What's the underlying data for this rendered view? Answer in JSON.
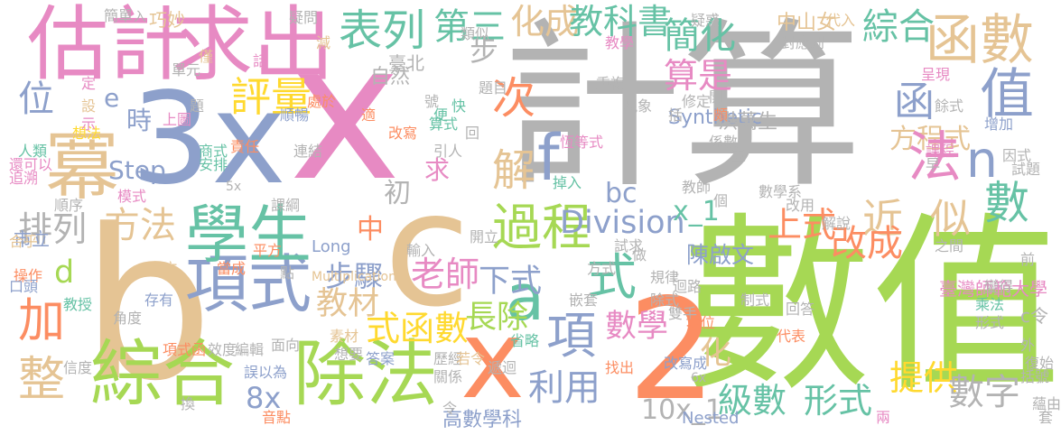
{
  "words": [
    {
      "text": "計算",
      "color": "#b3b3b3",
      "vertical": false
    },
    {
      "text": "數值",
      "color": "#a6d854",
      "vertical": false
    },
    {
      "text": "x",
      "color": "#e78ac3",
      "vertical": false
    },
    {
      "text": "3x",
      "color": "#8da0cb",
      "vertical": false
    },
    {
      "text": "b",
      "color": "#e5c494",
      "vertical": false
    },
    {
      "text": "c",
      "color": "#e5c494",
      "vertical": false
    },
    {
      "text": "2",
      "color": "#fc8d62",
      "vertical": false
    },
    {
      "text": "x",
      "color": "#fc8d62",
      "vertical": false
    },
    {
      "text": "估計",
      "color": "#e78ac3",
      "vertical": false
    },
    {
      "text": "求出",
      "color": "#e78ac3",
      "vertical": false
    },
    {
      "text": "冪",
      "color": "#e5c494",
      "vertical": false
    },
    {
      "text": "位",
      "color": "#8da0cb",
      "vertical": false
    },
    {
      "text": "綜合",
      "color": "#a6d854",
      "vertical": false
    },
    {
      "text": "除法",
      "color": "#a6d854",
      "vertical": false
    },
    {
      "text": "項式",
      "color": "#8da0cb",
      "vertical": false
    },
    {
      "text": "學生",
      "color": "#66c2a5",
      "vertical": false
    },
    {
      "text": "評量",
      "color": "#ffd92f",
      "vertical": false
    },
    {
      "text": "方法",
      "color": "#e5c494",
      "vertical": false
    },
    {
      "text": "排列",
      "color": "#b3b3b3",
      "vertical": false
    },
    {
      "text": "加",
      "color": "#fc8d62",
      "vertical": false
    },
    {
      "text": "整",
      "color": "#e5c494",
      "vertical": false
    },
    {
      "text": "d",
      "color": "#a6d854",
      "vertical": false
    },
    {
      "text": "e",
      "color": "#8da0cb",
      "vertical": false
    },
    {
      "text": "時",
      "color": "#8da0cb",
      "vertical": false
    },
    {
      "text": "Step",
      "color": "#8da0cb",
      "vertical": false
    },
    {
      "text": "表列",
      "color": "#66c2a5",
      "vertical": false
    },
    {
      "text": "第三",
      "color": "#66c2a5",
      "vertical": false
    },
    {
      "text": "化成",
      "color": "#e5c494",
      "vertical": false
    },
    {
      "text": "教科書",
      "color": "#66c2a5",
      "vertical": false
    },
    {
      "text": "次",
      "color": "#fc8d62",
      "vertical": false
    },
    {
      "text": "解",
      "color": "#e5c494",
      "vertical": false
    },
    {
      "text": "步",
      "color": "#b3b3b3",
      "vertical": false
    },
    {
      "text": "f",
      "color": "#8da0cb",
      "vertical": false
    },
    {
      "text": "過程",
      "color": "#a6d854",
      "vertical": false
    },
    {
      "text": "a",
      "color": "#66c2a5",
      "vertical": false
    },
    {
      "text": "式",
      "color": "#66c2a5",
      "vertical": false
    },
    {
      "text": "項",
      "color": "#8da0cb",
      "vertical": false
    },
    {
      "text": "利用",
      "color": "#8da0cb",
      "vertical": false
    },
    {
      "text": "Division",
      "color": "#8da0cb",
      "vertical": false
    },
    {
      "text": "步驟",
      "color": "#8da0cb",
      "vertical": false
    },
    {
      "text": "老師",
      "color": "#e78ac3",
      "vertical": false
    },
    {
      "text": "中",
      "color": "#fc8d62",
      "vertical": false
    },
    {
      "text": "教材",
      "color": "#e5c494",
      "vertical": false
    },
    {
      "text": "式函數",
      "color": "#ffd92f",
      "vertical": false
    },
    {
      "text": "下式",
      "color": "#8da0cb",
      "vertical": false
    },
    {
      "text": "長除",
      "color": "#a6d854",
      "vertical": false
    },
    {
      "text": "數學",
      "color": "#e78ac3",
      "vertical": false
    },
    {
      "text": "初",
      "color": "#b3b3b3",
      "vertical": false
    },
    {
      "text": "求",
      "color": "#e78ac3",
      "vertical": false
    },
    {
      "text": "bc",
      "color": "#8da0cb",
      "vertical": false
    },
    {
      "text": "x_1",
      "color": "#66c2a5",
      "vertical": false
    },
    {
      "text": "8x",
      "color": "#8da0cb",
      "vertical": false
    },
    {
      "text": "10x_1",
      "color": "#b3b3b3",
      "vertical": false
    },
    {
      "text": "簡化",
      "color": "#66c2a5",
      "vertical": false
    },
    {
      "text": "算是",
      "color": "#e78ac3",
      "vertical": false
    },
    {
      "text": "綜合",
      "color": "#66c2a5",
      "vertical": false
    },
    {
      "text": "函數",
      "color": "#e5c494",
      "vertical": false
    },
    {
      "text": "值",
      "color": "#8da0cb",
      "vertical": false
    },
    {
      "text": "函",
      "color": "#8da0cb",
      "vertical": false
    },
    {
      "text": "方程式",
      "color": "#e5c494",
      "vertical": false
    },
    {
      "text": "法",
      "color": "#e78ac3",
      "vertical": false
    },
    {
      "text": "n",
      "color": "#8da0cb",
      "vertical": false
    },
    {
      "text": "數",
      "color": "#66c2a5",
      "vertical": false
    },
    {
      "text": "近",
      "color": "#e5c494",
      "vertical": false
    },
    {
      "text": "似",
      "color": "#e5c494",
      "vertical": false
    },
    {
      "text": "上式",
      "color": "#fc8d62",
      "vertical": false
    },
    {
      "text": "改成",
      "color": "#fc8d62",
      "vertical": false
    },
    {
      "text": "陳啟文",
      "color": "#8da0cb",
      "vertical": false
    },
    {
      "text": "化",
      "color": "#e5c494",
      "vertical": false
    },
    {
      "text": "級數",
      "color": "#66c2a5",
      "vertical": false
    },
    {
      "text": "形式",
      "color": "#66c2a5",
      "vertical": false
    },
    {
      "text": "提供",
      "color": "#ffd92f",
      "vertical": false
    },
    {
      "text": "數字",
      "color": "#b3b3b3",
      "vertical": false
    },
    {
      "text": "Synthetic",
      "color": "#8da0cb",
      "vertical": false
    },
    {
      "text": "中山女",
      "color": "#e5c494",
      "vertical": false
    },
    {
      "text": "臺北",
      "color": "#b3b3b3",
      "vertical": false
    },
    {
      "text": "自然",
      "color": "#b3b3b3",
      "vertical": false
    },
    {
      "text": "巧妙",
      "color": "#e5c494",
      "vertical": false
    },
    {
      "text": "Long",
      "color": "#8da0cb",
      "vertical": false
    },
    {
      "text": "Multiplication",
      "color": "#e5c494",
      "vertical": false
    },
    {
      "text": "Nested",
      "color": "#8da0cb",
      "vertical": false
    },
    {
      "text": "臺灣師範大學",
      "color": "#e78ac3",
      "vertical": false
    },
    {
      "text": "國立",
      "color": "#e5c494",
      "vertical": false
    },
    {
      "text": "高數學科",
      "color": "#8da0cb",
      "vertical": false
    },
    {
      "text": "市立",
      "color": "#8da0cb",
      "vertical": false
    },
    {
      "text": "洪萬生",
      "color": "#b3b3b3",
      "vertical": false
    },
    {
      "text": "c令",
      "color": "#b3b3b3",
      "vertical": false
    },
    {
      "text": "5x",
      "color": "#b3b3b3",
      "vertical": false
    },
    {
      "text": "6x",
      "color": "#b3b3b3",
      "vertical": false
    },
    {
      "text": "簡單",
      "color": "#b3b3b3",
      "vertical": false
    },
    {
      "text": "入",
      "color": "#b3b3b3",
      "vertical": false
    },
    {
      "text": "疑問",
      "color": "#b3b3b3",
      "vertical": false
    },
    {
      "text": "類似",
      "color": "#b3b3b3",
      "vertical": false
    },
    {
      "text": "教學",
      "color": "#e78ac3",
      "vertical": false
    },
    {
      "text": "重複",
      "color": "#b3b3b3",
      "vertical": false
    },
    {
      "text": "現象",
      "color": "#b3b3b3",
      "vertical": false
    },
    {
      "text": "疑惑",
      "color": "#b3b3b3",
      "vertical": false
    },
    {
      "text": "對應到",
      "color": "#b3b3b3",
      "vertical": false
    },
    {
      "text": "代入",
      "color": "#e5c494",
      "vertical": false
    },
    {
      "text": "呈現",
      "color": "#e78ac3",
      "vertical": false
    },
    {
      "text": "餘式",
      "color": "#b3b3b3",
      "vertical": false
    },
    {
      "text": "增加",
      "color": "#8da0cb",
      "vertical": false
    },
    {
      "text": "修定",
      "color": "#b3b3b3",
      "vertical": false
    },
    {
      "text": "題目",
      "color": "#b3b3b3",
      "vertical": false
    },
    {
      "text": "處於",
      "color": "#fc8d62",
      "vertical": false
    },
    {
      "text": "順暢",
      "color": "#8da0cb",
      "vertical": false
    },
    {
      "text": "算式",
      "color": "#66c2a5",
      "vertical": false
    },
    {
      "text": "改寫",
      "color": "#fc8d62",
      "vertical": false
    },
    {
      "text": "恆等式",
      "color": "#e78ac3",
      "vertical": false
    },
    {
      "text": "引人",
      "color": "#b3b3b3",
      "vertical": false
    },
    {
      "text": "係數",
      "color": "#b3b3b3",
      "vertical": false
    },
    {
      "text": "五",
      "color": "#b3b3b3",
      "vertical": false
    },
    {
      "text": "因式",
      "color": "#b3b3b3",
      "vertical": false
    },
    {
      "text": "試題",
      "color": "#b3b3b3",
      "vertical": false
    },
    {
      "text": "課程",
      "color": "#e78ac3",
      "vertical": false
    },
    {
      "text": "早",
      "color": "#b3b3b3",
      "vertical": false
    },
    {
      "text": "上圖",
      "color": "#e78ac3",
      "vertical": false
    },
    {
      "text": "想法",
      "color": "#ffd92f",
      "vertical": false
    },
    {
      "text": "示",
      "color": "#e78ac3",
      "vertical": false
    },
    {
      "text": "人類",
      "color": "#66c2a5",
      "vertical": false
    },
    {
      "text": "還可以",
      "color": "#e78ac3",
      "vertical": false
    },
    {
      "text": "追溯",
      "color": "#e78ac3",
      "vertical": false
    },
    {
      "text": "商式",
      "color": "#66c2a5",
      "vertical": false
    },
    {
      "text": "安排",
      "color": "#66c2a5",
      "vertical": false
    },
    {
      "text": "責任",
      "color": "#fc8d62",
      "vertical": false
    },
    {
      "text": "連結",
      "color": "#b3b3b3",
      "vertical": false
    },
    {
      "text": "模式",
      "color": "#e78ac3",
      "vertical": false
    },
    {
      "text": "順序",
      "color": "#b3b3b3",
      "vertical": false
    },
    {
      "text": "課綱",
      "color": "#b3b3b3",
      "vertical": false
    },
    {
      "text": "掉入",
      "color": "#66c2a5",
      "vertical": false
    },
    {
      "text": "教師",
      "color": "#b3b3b3",
      "vertical": false
    },
    {
      "text": "數學系",
      "color": "#b3b3b3",
      "vertical": false
    },
    {
      "text": "改用",
      "color": "#b3b3b3",
      "vertical": false
    },
    {
      "text": "解說",
      "color": "#b3b3b3",
      "vertical": false
    },
    {
      "text": "開立",
      "color": "#b3b3b3",
      "vertical": false
    },
    {
      "text": "輸入",
      "color": "#b3b3b3",
      "vertical": false
    },
    {
      "text": "除式",
      "color": "#b3b3b3",
      "vertical": false
    },
    {
      "text": "雙手",
      "color": "#b3b3b3",
      "vertical": false
    },
    {
      "text": "地位",
      "color": "#fc8d62",
      "vertical": false
    },
    {
      "text": "之間",
      "color": "#b3b3b3",
      "vertical": false
    },
    {
      "text": "試求",
      "color": "#b3b3b3",
      "vertical": false
    },
    {
      "text": "做",
      "color": "#b3b3b3",
      "vertical": false
    },
    {
      "text": "合乎",
      "color": "#e5c494",
      "vertical": false
    },
    {
      "text": "操作",
      "color": "#fc8d62",
      "vertical": false
    },
    {
      "text": "口頭",
      "color": "#8da0cb",
      "vertical": false
    },
    {
      "text": "平方",
      "color": "#fc8d62",
      "vertical": false
    },
    {
      "text": "點",
      "color": "#b3b3b3",
      "vertical": false
    },
    {
      "text": "方式",
      "color": "#b3b3b3",
      "vertical": false
    },
    {
      "text": "規律",
      "color": "#b3b3b3",
      "vertical": false
    },
    {
      "text": "迴路",
      "color": "#b3b3b3",
      "vertical": false
    },
    {
      "text": "前",
      "color": "#b3b3b3",
      "vertical": false
    },
    {
      "text": "變得",
      "color": "#b3b3b3",
      "vertical": false
    },
    {
      "text": "當成",
      "color": "#fc8d62",
      "vertical": false
    },
    {
      "text": "存有",
      "color": "#8da0cb",
      "vertical": false
    },
    {
      "text": "教授",
      "color": "#66c2a5",
      "vertical": false
    },
    {
      "text": "角度",
      "color": "#b3b3b3",
      "vertical": false
    },
    {
      "text": "嵌套",
      "color": "#b3b3b3",
      "vertical": false
    },
    {
      "text": "制式",
      "color": "#b3b3b3",
      "vertical": false
    },
    {
      "text": "回答",
      "color": "#b3b3b3",
      "vertical": false
    },
    {
      "text": "乘法",
      "color": "#66c2a5",
      "vertical": false
    },
    {
      "text": "代表",
      "color": "#fc8d62",
      "vertical": false
    },
    {
      "text": "形式",
      "color": "#b3b3b3",
      "vertical": false
    },
    {
      "text": "外",
      "color": "#b3b3b3",
      "vertical": false
    },
    {
      "text": "復始",
      "color": "#b3b3b3",
      "vertical": false
    },
    {
      "text": "括號",
      "color": "#b3b3b3",
      "vertical": false
    },
    {
      "text": "項式函",
      "color": "#fc8d62",
      "vertical": false
    },
    {
      "text": "效度",
      "color": "#b3b3b3",
      "vertical": false
    },
    {
      "text": "編輯",
      "color": "#b3b3b3",
      "vertical": false
    },
    {
      "text": "面向",
      "color": "#b3b3b3",
      "vertical": false
    },
    {
      "text": "素材",
      "color": "#e5c494",
      "vertical": false
    },
    {
      "text": "想要",
      "color": "#b3b3b3",
      "vertical": false
    },
    {
      "text": "答案",
      "color": "#8da0cb",
      "vertical": false
    },
    {
      "text": "歷經",
      "color": "#b3b3b3",
      "vertical": false
    },
    {
      "text": "若令",
      "color": "#e5c494",
      "vertical": false
    },
    {
      "text": "省略",
      "color": "#66c2a5",
      "vertical": false
    },
    {
      "text": "改寫成",
      "color": "#8da0cb",
      "vertical": false
    },
    {
      "text": "信度",
      "color": "#b3b3b3",
      "vertical": false
    },
    {
      "text": "誤以為",
      "color": "#8da0cb",
      "vertical": false
    },
    {
      "text": "關係",
      "color": "#b3b3b3",
      "vertical": false
    },
    {
      "text": "遞迴",
      "color": "#b3b3b3",
      "vertical": false
    },
    {
      "text": "找出",
      "color": "#fc8d62",
      "vertical": false
    },
    {
      "text": "換",
      "color": "#b3b3b3",
      "vertical": false
    },
    {
      "text": "音點",
      "color": "#fc8d62",
      "vertical": false
    },
    {
      "text": "令",
      "color": "#b3b3b3",
      "vertical": false
    },
    {
      "text": "套",
      "color": "#b3b3b3",
      "vertical": false
    },
    {
      "text": "蘊由",
      "color": "#b3b3b3",
      "vertical": false
    },
    {
      "text": "兩",
      "color": "#e78ac3",
      "vertical": false
    },
    {
      "text": "設",
      "color": "#e5c494",
      "vertical": false
    },
    {
      "text": "定",
      "color": "#e78ac3",
      "vertical": false
    },
    {
      "text": "單元",
      "color": "#b3b3b3",
      "vertical": false
    },
    {
      "text": "僅",
      "color": "#e5c494",
      "vertical": false
    },
    {
      "text": "題",
      "color": "#b3b3b3",
      "vertical": false
    },
    {
      "text": "話",
      "color": "#e78ac3",
      "vertical": false
    },
    {
      "text": "減",
      "color": "#e5c494",
      "vertical": false
    },
    {
      "text": "號",
      "color": "#b3b3b3",
      "vertical": false
    },
    {
      "text": "快",
      "color": "#66c2a5",
      "vertical": false
    },
    {
      "text": "便",
      "color": "#66c2a5",
      "vertical": false
    },
    {
      "text": "適",
      "color": "#fc8d62",
      "vertical": false
    },
    {
      "text": "頗",
      "color": "#fc8d62",
      "vertical": false
    },
    {
      "text": "開",
      "color": "#b3b3b3",
      "vertical": false
    },
    {
      "text": "括",
      "color": "#b3b3b3",
      "vertical": false
    },
    {
      "text": "回",
      "color": "#b3b3b3",
      "vertical": false
    },
    {
      "text": "個",
      "color": "#b3b3b3",
      "vertical": false
    }
  ]
}
